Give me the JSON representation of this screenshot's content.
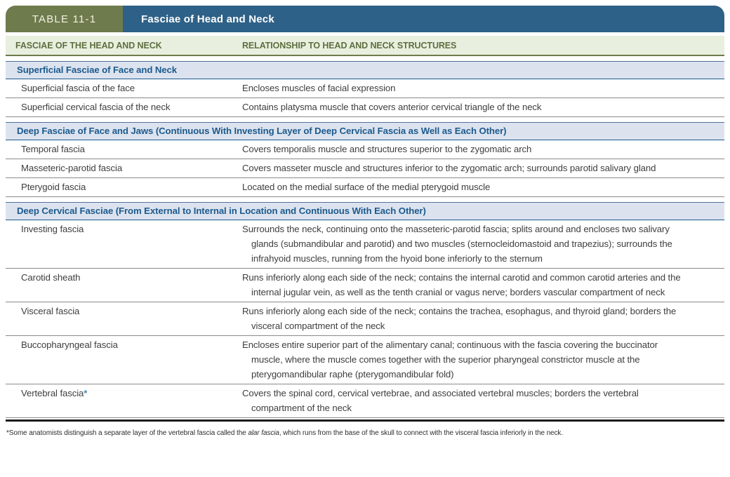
{
  "table": {
    "tab_label": "TABLE 11-1",
    "title": "Fasciae of Head and Neck",
    "columns": [
      "FASCIAE OF THE HEAD AND NECK",
      "RELATIONSHIP TO HEAD AND NECK STRUCTURES"
    ],
    "sections": [
      {
        "header": "Superficial Fasciae of Face and Neck",
        "rows": [
          {
            "fascia": "Superficial fascia of the face",
            "relationship": "Encloses muscles of facial expression"
          },
          {
            "fascia": "Superficial cervical fascia of the neck",
            "relationship": "Contains platysma muscle that covers anterior cervical triangle of the neck"
          }
        ]
      },
      {
        "header": "Deep Fasciae of Face and Jaws (Continuous With Investing Layer of Deep Cervical Fascia as Well as Each Other)",
        "rows": [
          {
            "fascia": "Temporal fascia",
            "relationship": "Covers temporalis muscle and structures superior to the zygomatic arch"
          },
          {
            "fascia": "Masseteric-parotid fascia",
            "relationship": "Covers masseter muscle and structures inferior to the zygomatic arch; surrounds parotid salivary gland"
          },
          {
            "fascia": "Pterygoid fascia",
            "relationship": "Located on the medial surface of the medial pterygoid muscle"
          }
        ]
      },
      {
        "header": "Deep Cervical Fasciae (From External to Internal in Location and Continuous With Each Other)",
        "rows": [
          {
            "fascia": "Investing fascia",
            "relationship": "Surrounds the neck, continuing onto the masseteric-parotid fascia; splits around and encloses two salivary glands (submandibular and parotid) and two muscles (sternocleidomastoid and trapezius); surrounds the infrahyoid muscles, running from the hyoid bone inferiorly to the sternum"
          },
          {
            "fascia": "Carotid sheath",
            "relationship": "Runs inferiorly along each side of the neck; contains the internal carotid and common carotid arteries and the internal jugular vein, as well as the tenth cranial or vagus nerve; borders vascular compartment of neck"
          },
          {
            "fascia": "Visceral fascia",
            "relationship": "Runs inferiorly along each side of the neck; contains the trachea, esophagus, and thyroid gland; borders the visceral compartment of the neck"
          },
          {
            "fascia": "Buccopharyngeal fascia",
            "relationship": "Encloses entire superior part of the alimentary canal; continuous with the fascia covering the buccinator muscle, where the muscle comes together with the superior pharyngeal constrictor muscle at the pterygomandibular raphe (pterygomandibular fold)"
          },
          {
            "fascia": "Vertebral fascia",
            "fascia_marker": "*",
            "relationship": "Covers the spinal cord, cervical vertebrae, and associated vertebral muscles; borders the vertebral compartment of the neck"
          }
        ]
      }
    ],
    "footnote": {
      "marker": "*",
      "text_before": "Some anatomists distinguish a separate layer of the vertebral fascia called the ",
      "italic_term": "alar fascia",
      "text_after": ", which runs from the base of the skull to connect with the visceral fascia inferiorly in the neck."
    },
    "colors": {
      "tab_olive": "#6e7b4d",
      "title_blue": "#2e6187",
      "column_header_bg": "#e9efdf",
      "column_header_text": "#5d6f3f",
      "section_band_bg": "#dce3ef",
      "section_band_text": "#1c5a8c",
      "asterisk_blue": "#4a8bbf",
      "row_rule_gray": "#8a8a8a",
      "bottom_rule_black": "#1c1c1c"
    }
  }
}
